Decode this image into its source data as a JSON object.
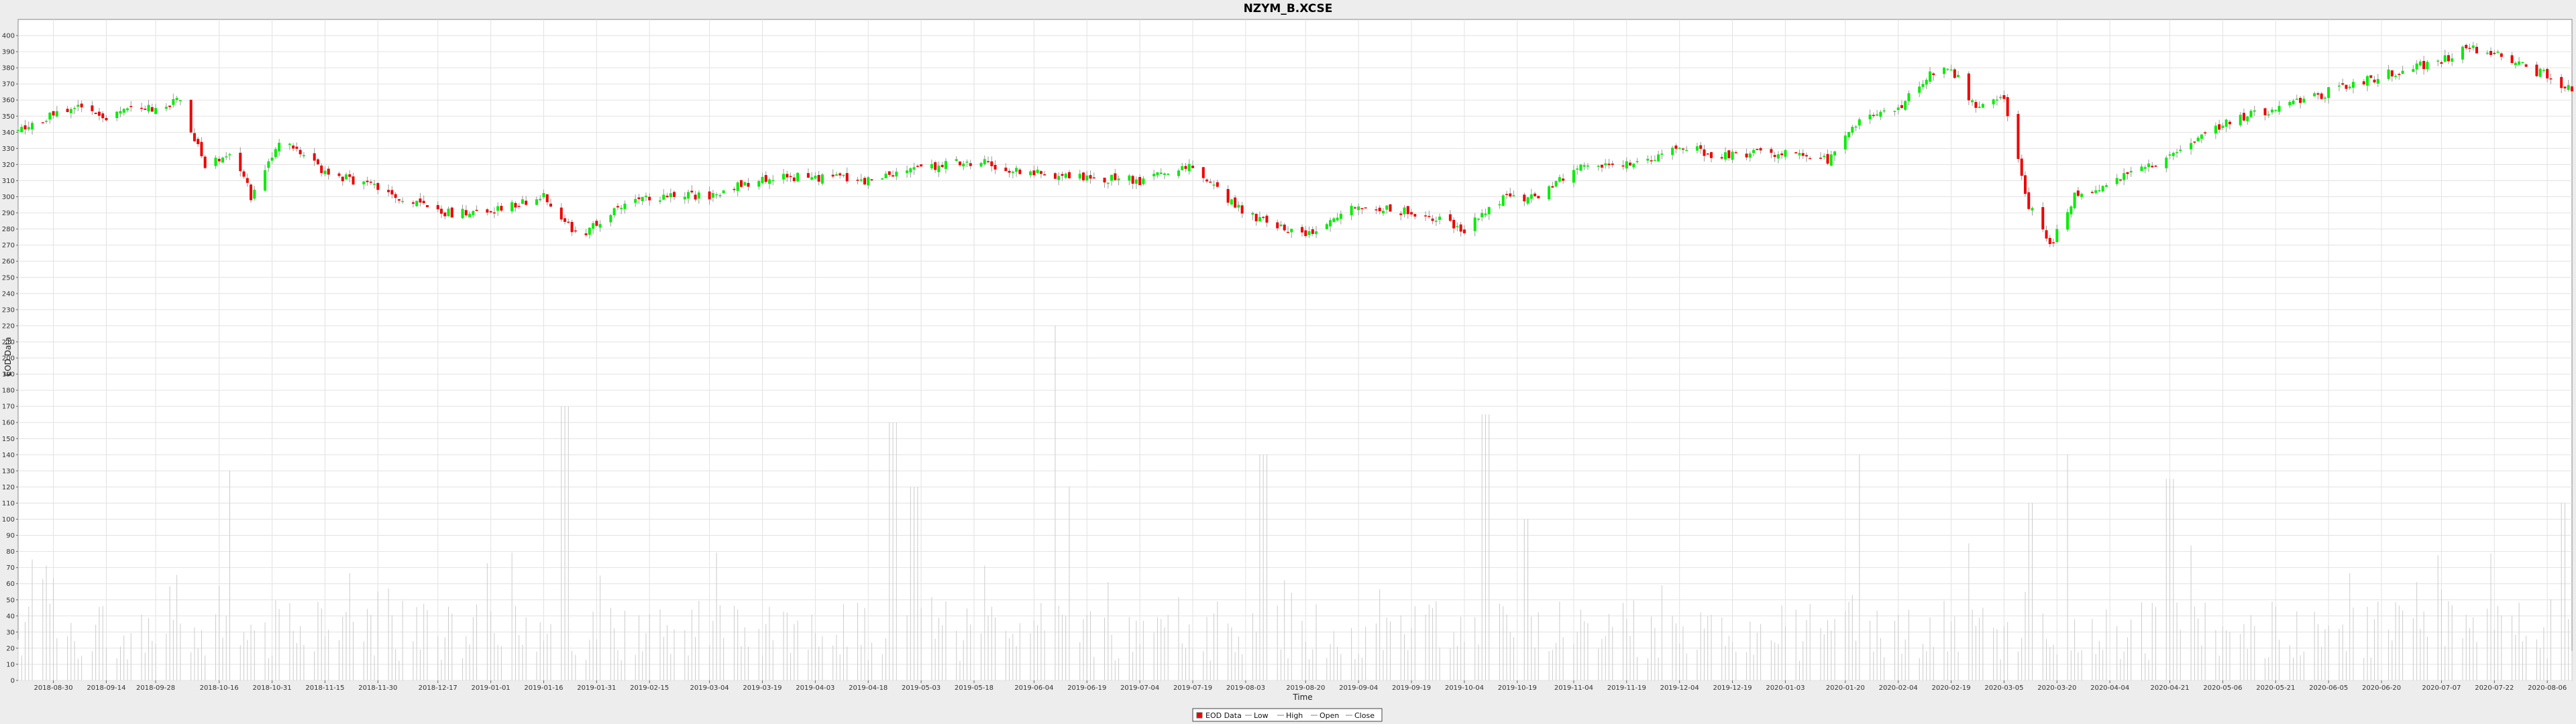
{
  "chart_data": {
    "type": "candlestick",
    "title": "NZYM_B.XCSE",
    "xlabel": "Time",
    "ylabel": "EOD Data",
    "ylim": [
      0,
      410
    ],
    "yticks": [
      0,
      10,
      20,
      30,
      40,
      50,
      60,
      70,
      80,
      90,
      100,
      110,
      120,
      130,
      140,
      150,
      160,
      170,
      180,
      190,
      200,
      210,
      220,
      230,
      240,
      250,
      260,
      270,
      280,
      290,
      300,
      310,
      320,
      330,
      340,
      350,
      360,
      370,
      380,
      390,
      400
    ],
    "xlim": [
      "2018-08-20",
      "2020-08-13"
    ],
    "xticks": [
      "2018-08-30",
      "2018-09-14",
      "2018-09-28",
      "2018-10-16",
      "2018-10-31",
      "2018-11-15",
      "2018-11-30",
      "2018-12-17",
      "2019-01-01",
      "2019-01-16",
      "2019-01-31",
      "2019-02-15",
      "2019-03-04",
      "2019-03-19",
      "2019-04-03",
      "2019-04-18",
      "2019-05-03",
      "2019-05-18",
      "2019-06-04",
      "2019-06-19",
      "2019-07-04",
      "2019-07-19",
      "2019-08-03",
      "2019-08-20",
      "2019-09-04",
      "2019-09-19",
      "2019-10-04",
      "2019-10-19",
      "2019-11-04",
      "2019-11-19",
      "2019-12-04",
      "2019-12-19",
      "2020-01-03",
      "2020-01-20",
      "2020-02-04",
      "2020-02-19",
      "2020-03-05",
      "2020-03-20",
      "2020-04-04",
      "2020-04-21",
      "2020-05-06",
      "2020-05-21",
      "2020-06-05",
      "2020-06-20",
      "2020-07-07",
      "2020-07-22",
      "2020-08-06"
    ],
    "grid": true,
    "legend": {
      "placement": "bottom-center",
      "entries": [
        "EOD Data",
        "Low",
        "High",
        "Open",
        "Close"
      ]
    },
    "colors": {
      "up": "#00ee00",
      "down": "#ee0000",
      "wick": "#999999",
      "volume": "#cccccc",
      "grid": "#e2e2e2"
    },
    "close_series": [
      {
        "date": "2018-08-20",
        "close": 342
      },
      {
        "date": "2018-09-05",
        "close": 357
      },
      {
        "date": "2018-09-14",
        "close": 350
      },
      {
        "date": "2018-09-28",
        "close": 356
      },
      {
        "date": "2018-10-05",
        "close": 360
      },
      {
        "date": "2018-10-12",
        "close": 320
      },
      {
        "date": "2018-10-20",
        "close": 330
      },
      {
        "date": "2018-10-25",
        "close": 300
      },
      {
        "date": "2018-11-02",
        "close": 335
      },
      {
        "date": "2018-11-15",
        "close": 315
      },
      {
        "date": "2018-11-30",
        "close": 305
      },
      {
        "date": "2018-12-17",
        "close": 290
      },
      {
        "date": "2019-01-01",
        "close": 290
      },
      {
        "date": "2019-01-16",
        "close": 300
      },
      {
        "date": "2019-01-26",
        "close": 275
      },
      {
        "date": "2019-02-10",
        "close": 300
      },
      {
        "date": "2019-03-04",
        "close": 300
      },
      {
        "date": "2019-03-19",
        "close": 312
      },
      {
        "date": "2019-04-03",
        "close": 312
      },
      {
        "date": "2019-04-18",
        "close": 310
      },
      {
        "date": "2019-05-03",
        "close": 318
      },
      {
        "date": "2019-05-18",
        "close": 322
      },
      {
        "date": "2019-06-04",
        "close": 315
      },
      {
        "date": "2019-06-19",
        "close": 312
      },
      {
        "date": "2019-07-04",
        "close": 310
      },
      {
        "date": "2019-07-19",
        "close": 318
      },
      {
        "date": "2019-08-03",
        "close": 290
      },
      {
        "date": "2019-08-20",
        "close": 275
      },
      {
        "date": "2019-09-04",
        "close": 295
      },
      {
        "date": "2019-09-19",
        "close": 290
      },
      {
        "date": "2019-10-04",
        "close": 280
      },
      {
        "date": "2019-10-15",
        "close": 300
      },
      {
        "date": "2019-10-25",
        "close": 300
      },
      {
        "date": "2019-11-04",
        "close": 318
      },
      {
        "date": "2019-11-19",
        "close": 320
      },
      {
        "date": "2019-12-04",
        "close": 330
      },
      {
        "date": "2019-12-19",
        "close": 325
      },
      {
        "date": "2020-01-03",
        "close": 328
      },
      {
        "date": "2020-01-15",
        "close": 322
      },
      {
        "date": "2020-01-25",
        "close": 352
      },
      {
        "date": "2020-02-04",
        "close": 355
      },
      {
        "date": "2020-02-12",
        "close": 375
      },
      {
        "date": "2020-02-19",
        "close": 380
      },
      {
        "date": "2020-02-26",
        "close": 355
      },
      {
        "date": "2020-03-05",
        "close": 360
      },
      {
        "date": "2020-03-12",
        "close": 295
      },
      {
        "date": "2020-03-18",
        "close": 270
      },
      {
        "date": "2020-03-25",
        "close": 300
      },
      {
        "date": "2020-04-04",
        "close": 308
      },
      {
        "date": "2020-04-21",
        "close": 325
      },
      {
        "date": "2020-05-06",
        "close": 345
      },
      {
        "date": "2020-05-21",
        "close": 355
      },
      {
        "date": "2020-06-05",
        "close": 365
      },
      {
        "date": "2020-06-20",
        "close": 375
      },
      {
        "date": "2020-07-07",
        "close": 385
      },
      {
        "date": "2020-07-15",
        "close": 392
      },
      {
        "date": "2020-07-22",
        "close": 388
      },
      {
        "date": "2020-08-06",
        "close": 375
      },
      {
        "date": "2020-08-13",
        "close": 365
      }
    ],
    "volume_series": [
      {
        "date": "2018-08-25",
        "volume": 75
      },
      {
        "date": "2018-10-20",
        "volume": 130
      },
      {
        "date": "2019-01-22",
        "volume": 170
      },
      {
        "date": "2019-04-25",
        "volume": 160
      },
      {
        "date": "2019-05-01",
        "volume": 120
      },
      {
        "date": "2019-06-09",
        "volume": 220
      },
      {
        "date": "2019-06-15",
        "volume": 120
      },
      {
        "date": "2019-08-08",
        "volume": 140
      },
      {
        "date": "2019-10-10",
        "volume": 165
      },
      {
        "date": "2019-10-21",
        "volume": 100
      },
      {
        "date": "2020-01-25",
        "volume": 140
      },
      {
        "date": "2020-03-13",
        "volume": 110
      },
      {
        "date": "2020-03-22",
        "volume": 140
      },
      {
        "date": "2020-04-21",
        "volume": 125
      },
      {
        "date": "2020-08-10",
        "volume": 110
      }
    ]
  }
}
